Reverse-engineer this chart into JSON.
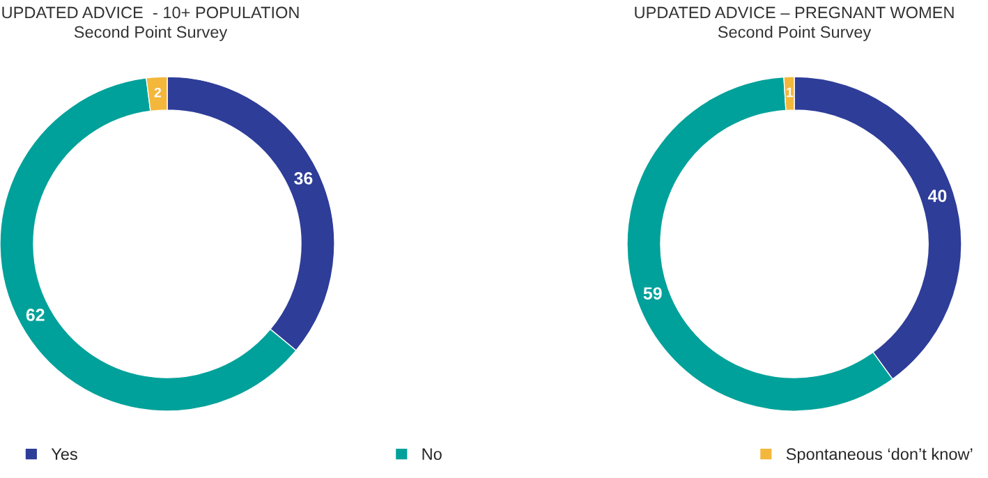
{
  "chart_data": [
    {
      "type": "donut",
      "title": "UPDATED ADVICE  - 10+ POPULATION",
      "subtitle": "Second Point Survey",
      "categories": [
        "Yes",
        "No",
        "Spontaneous ‘don’t know’"
      ],
      "values": [
        36,
        62,
        2
      ],
      "colors": [
        "#2e3d98",
        "#00a19a",
        "#f3b73b"
      ],
      "data_labels": true,
      "legend": "bottom"
    },
    {
      "type": "donut",
      "title": "UPDATED ADVICE – PREGNANT WOMEN",
      "subtitle": "Second Point Survey",
      "categories": [
        null,
        null,
        null
      ],
      "values": [
        40,
        59,
        1
      ],
      "colors": [
        "#2e3d98",
        "#00a19a",
        "#f3b73b"
      ],
      "data_labels": true
    }
  ]
}
